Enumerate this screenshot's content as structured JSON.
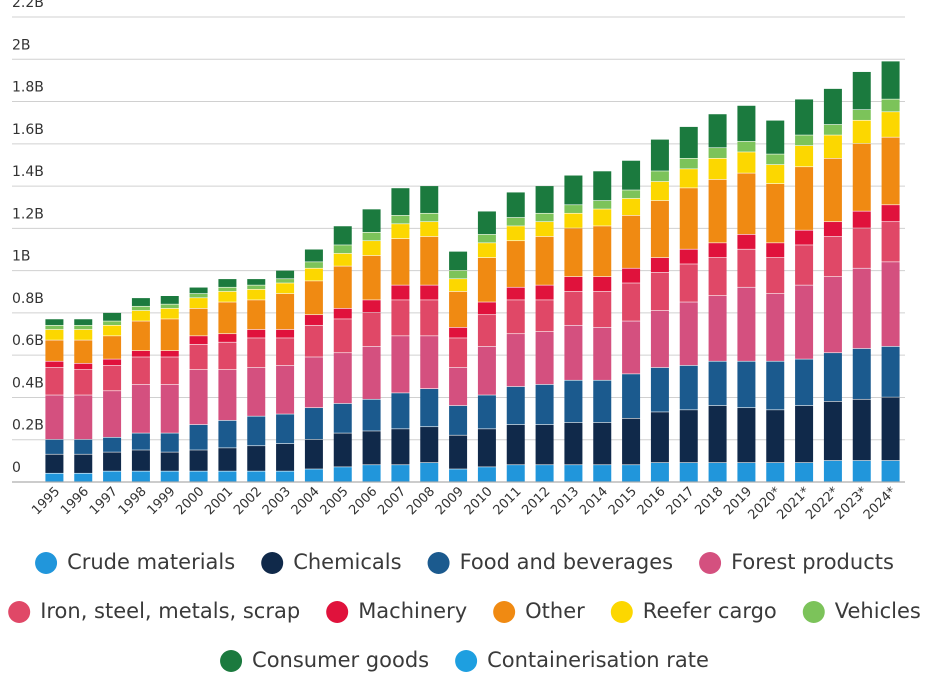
{
  "chart_data": {
    "type": "bar",
    "stacked": true,
    "categories": [
      "1995",
      "1996",
      "1997",
      "1998",
      "1999",
      "2000",
      "2001",
      "2002",
      "2003",
      "2004",
      "2005",
      "2006",
      "2007",
      "2008",
      "2009",
      "2010",
      "2011",
      "2012",
      "2013",
      "2014",
      "2015",
      "2016",
      "2017",
      "2018",
      "2019",
      "2020*",
      "2021*",
      "2022*",
      "2023*",
      "2024*"
    ],
    "ylim": [
      0,
      2200000000
    ],
    "yticks": [
      0,
      {
        "value": 200000000,
        "label": "0.2B"
      },
      {
        "value": 400000000,
        "label": "0.4B"
      },
      {
        "value": 600000000,
        "label": "0.6B"
      },
      {
        "value": 800000000,
        "label": "0.8B"
      },
      {
        "value": 1000000000,
        "label": "1B"
      },
      {
        "value": 1200000000,
        "label": "1.2B"
      },
      {
        "value": 1400000000,
        "label": "1.4B"
      },
      {
        "value": 1600000000,
        "label": "1.6B"
      },
      {
        "value": 1800000000,
        "label": "1.8B"
      },
      {
        "value": 2000000000,
        "label": "2B"
      },
      {
        "value": 2200000000,
        "label": "2.2B"
      }
    ],
    "grid": true,
    "series": [
      {
        "name": "Crude materials",
        "color": "#2196db",
        "values": [
          40000000,
          40000000,
          50000000,
          50000000,
          50000000,
          50000000,
          50000000,
          50000000,
          50000000,
          60000000,
          70000000,
          80000000,
          80000000,
          90000000,
          60000000,
          70000000,
          80000000,
          80000000,
          80000000,
          80000000,
          80000000,
          90000000,
          90000000,
          90000000,
          90000000,
          90000000,
          90000000,
          100000000,
          100000000,
          100000000
        ]
      },
      {
        "name": "Chemicals",
        "color": "#10294a",
        "values": [
          90000000,
          90000000,
          90000000,
          100000000,
          90000000,
          100000000,
          110000000,
          120000000,
          130000000,
          140000000,
          160000000,
          160000000,
          170000000,
          170000000,
          160000000,
          180000000,
          190000000,
          190000000,
          200000000,
          200000000,
          220000000,
          240000000,
          250000000,
          270000000,
          260000000,
          250000000,
          270000000,
          280000000,
          290000000,
          300000000
        ]
      },
      {
        "name": "Food and beverages",
        "color": "#1b5a8e",
        "values": [
          70000000,
          70000000,
          70000000,
          80000000,
          90000000,
          120000000,
          130000000,
          140000000,
          140000000,
          150000000,
          140000000,
          150000000,
          170000000,
          180000000,
          140000000,
          160000000,
          180000000,
          190000000,
          200000000,
          200000000,
          210000000,
          210000000,
          210000000,
          210000000,
          220000000,
          230000000,
          220000000,
          230000000,
          240000000,
          240000000
        ]
      },
      {
        "name": "Forest products",
        "color": "#d4507f",
        "values": [
          210000000,
          210000000,
          220000000,
          230000000,
          230000000,
          260000000,
          240000000,
          230000000,
          230000000,
          240000000,
          240000000,
          250000000,
          270000000,
          250000000,
          180000000,
          230000000,
          250000000,
          250000000,
          260000000,
          250000000,
          250000000,
          270000000,
          300000000,
          310000000,
          350000000,
          320000000,
          350000000,
          360000000,
          380000000,
          400000000
        ]
      },
      {
        "name": "Iron, steel, metals, scrap",
        "color": "#e04867",
        "values": [
          130000000,
          120000000,
          120000000,
          130000000,
          130000000,
          120000000,
          130000000,
          140000000,
          130000000,
          150000000,
          160000000,
          160000000,
          170000000,
          170000000,
          140000000,
          150000000,
          160000000,
          150000000,
          160000000,
          170000000,
          180000000,
          180000000,
          180000000,
          180000000,
          180000000,
          170000000,
          190000000,
          190000000,
          190000000,
          190000000
        ]
      },
      {
        "name": "Machinery",
        "color": "#e0123c",
        "values": [
          30000000,
          30000000,
          30000000,
          30000000,
          30000000,
          40000000,
          40000000,
          40000000,
          40000000,
          50000000,
          50000000,
          60000000,
          70000000,
          70000000,
          50000000,
          60000000,
          60000000,
          70000000,
          70000000,
          70000000,
          70000000,
          70000000,
          70000000,
          70000000,
          70000000,
          70000000,
          70000000,
          70000000,
          80000000,
          80000000
        ]
      },
      {
        "name": "Other",
        "color": "#f08a12",
        "values": [
          100000000,
          110000000,
          110000000,
          140000000,
          150000000,
          130000000,
          150000000,
          140000000,
          170000000,
          160000000,
          200000000,
          210000000,
          220000000,
          230000000,
          170000000,
          210000000,
          220000000,
          230000000,
          230000000,
          240000000,
          250000000,
          270000000,
          290000000,
          300000000,
          290000000,
          280000000,
          300000000,
          300000000,
          320000000,
          320000000
        ]
      },
      {
        "name": "Reefer cargo",
        "color": "#fcd700",
        "values": [
          50000000,
          50000000,
          50000000,
          50000000,
          50000000,
          50000000,
          50000000,
          50000000,
          50000000,
          60000000,
          60000000,
          70000000,
          70000000,
          70000000,
          60000000,
          70000000,
          70000000,
          70000000,
          70000000,
          80000000,
          80000000,
          90000000,
          90000000,
          100000000,
          100000000,
          90000000,
          100000000,
          110000000,
          110000000,
          120000000
        ]
      },
      {
        "name": "Vehicles",
        "color": "#7cc35a",
        "values": [
          20000000,
          20000000,
          20000000,
          20000000,
          20000000,
          20000000,
          20000000,
          20000000,
          20000000,
          30000000,
          40000000,
          40000000,
          40000000,
          40000000,
          40000000,
          40000000,
          40000000,
          40000000,
          40000000,
          40000000,
          40000000,
          50000000,
          50000000,
          50000000,
          50000000,
          50000000,
          50000000,
          50000000,
          50000000,
          60000000
        ]
      },
      {
        "name": "Consumer goods",
        "color": "#1b7a3e",
        "values": [
          30000000,
          30000000,
          40000000,
          40000000,
          40000000,
          30000000,
          40000000,
          30000000,
          40000000,
          60000000,
          90000000,
          110000000,
          130000000,
          130000000,
          90000000,
          110000000,
          120000000,
          130000000,
          140000000,
          140000000,
          140000000,
          150000000,
          150000000,
          160000000,
          170000000,
          160000000,
          170000000,
          170000000,
          180000000,
          180000000
        ]
      },
      {
        "name": "Containerisation rate",
        "color": "#1e9fe0",
        "type": "line",
        "values": [
          null,
          null,
          null,
          null,
          null,
          null,
          null,
          null,
          null,
          null,
          null,
          null,
          null,
          null,
          null,
          null,
          null,
          null,
          null,
          null,
          null,
          null,
          null,
          null,
          null,
          null,
          null,
          null,
          null,
          null
        ]
      }
    ]
  }
}
